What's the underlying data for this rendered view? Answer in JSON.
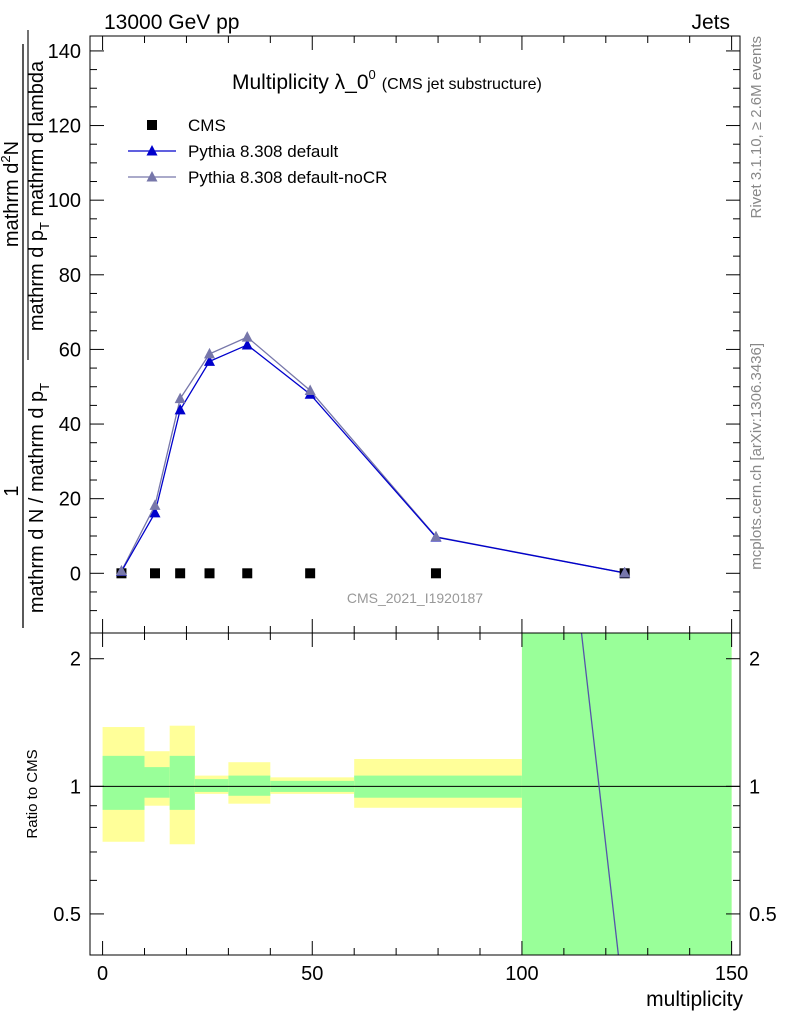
{
  "header": {
    "left": "13000 GeV pp",
    "right": "Jets"
  },
  "side_labels": {
    "rivet": "Rivet 3.1.10, ≥ 2.6M events",
    "mcplots": "mcplots.cern.ch [arXiv:1306.3436]"
  },
  "watermark": "CMS_2021_I1920187",
  "chart_data": {
    "type": "line",
    "title": "Multiplicity λ_0",
    "title_sup": "0",
    "subtitle": "(CMS jet substructure)",
    "xlabel": "multiplicity",
    "ylabel": {
      "frac1": "1",
      "denom1": "mathrm d N / mathrm d p",
      "denom1_sub": "T",
      "num2": "mathrm d",
      "num2_sup": "2",
      "num2_end": "N",
      "denom2": "mathrm d p",
      "denom2_sub": "T",
      "denom2_end": " mathrm d lambda"
    },
    "xlim": [
      -3,
      152
    ],
    "ylim": [
      -16,
      144
    ],
    "xticks": [
      0,
      50,
      100,
      150
    ],
    "yticks": [
      0,
      20,
      40,
      60,
      80,
      100,
      120,
      140
    ],
    "legend_position": "top-left",
    "series": [
      {
        "name": "CMS",
        "marker": "square",
        "color": "#000000",
        "x": [
          4.5,
          12.5,
          18.5,
          25.5,
          34.5,
          49.5,
          79.5,
          124.5
        ],
        "y": [
          0.0,
          0.0,
          0.0,
          0.0,
          0.0,
          0.0,
          0.0,
          0.0
        ]
      },
      {
        "name": "Pythia 8.308 default",
        "marker": "triangle",
        "color": "#0000cc",
        "x": [
          4.5,
          12.5,
          18.5,
          25.5,
          34.5,
          49.5,
          79.5,
          124.5
        ],
        "y": [
          0.5,
          16.2,
          43.8,
          56.8,
          61.2,
          48.0,
          9.7,
          0.1
        ]
      },
      {
        "name": "Pythia 8.308 default-noCR",
        "marker": "triangle",
        "color": "#7777aa",
        "x": [
          4.5,
          12.5,
          18.5,
          25.5,
          34.5,
          49.5,
          79.5,
          124.5
        ],
        "y": [
          0.6,
          18.2,
          46.8,
          58.8,
          63.3,
          49.0,
          9.8,
          0.1
        ]
      }
    ],
    "ratio": {
      "ylabel": "Ratio to CMS",
      "ylim": [
        0.4,
        2.3
      ],
      "yticks": [
        0.5,
        1,
        2
      ],
      "bins": [
        {
          "x0": 0,
          "x1": 10,
          "y1": [
            0.88,
            1.18
          ],
          "y2": [
            0.74,
            1.38
          ]
        },
        {
          "x0": 10,
          "x1": 16,
          "y1": [
            0.94,
            1.11
          ],
          "y2": [
            0.9,
            1.21
          ]
        },
        {
          "x0": 16,
          "x1": 22,
          "y1": [
            0.88,
            1.18
          ],
          "y2": [
            0.73,
            1.39
          ]
        },
        {
          "x0": 22,
          "x1": 30,
          "y1": [
            0.97,
            1.04
          ],
          "y2": [
            0.96,
            1.06
          ]
        },
        {
          "x0": 30,
          "x1": 40,
          "y1": [
            0.95,
            1.06
          ],
          "y2": [
            0.91,
            1.14
          ]
        },
        {
          "x0": 40,
          "x1": 60,
          "y1": [
            0.97,
            1.03
          ],
          "y2": [
            0.96,
            1.05
          ]
        },
        {
          "x0": 60,
          "x1": 100,
          "y1": [
            0.94,
            1.06
          ],
          "y2": [
            0.89,
            1.16
          ]
        },
        {
          "x0": 100,
          "x1": 150,
          "y1": [
            0.3,
            2.5
          ],
          "y2": [
            0.3,
            2.5
          ]
        }
      ],
      "line": {
        "x": [
          114.2,
          123.0
        ],
        "y": [
          2.5,
          0.4
        ]
      },
      "band_colors": {
        "inner": "#99ff99",
        "outer": "#ffff99"
      }
    }
  }
}
